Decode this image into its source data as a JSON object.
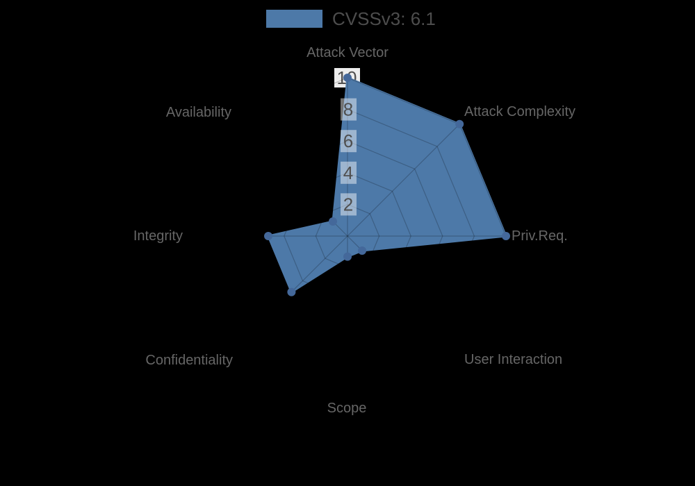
{
  "legend": {
    "label": "CVSSv3: 6.1"
  },
  "chart_data": {
    "type": "radar",
    "categories": [
      "Attack Vector",
      "Attack Complexity",
      "Priv.Req.",
      "User Interaction",
      "Scope",
      "Confidentiality",
      "Integrity",
      "Availability"
    ],
    "series": [
      {
        "name": "CVSSv3: 6.1",
        "values": [
          10,
          10,
          10,
          1.3,
          1.3,
          5,
          5,
          1.3
        ]
      }
    ],
    "ticks": [
      2,
      4,
      6,
      8,
      10
    ],
    "rmax": 10,
    "grid": true,
    "legend_position": "top-center",
    "center": {
      "x": 500,
      "y": 340
    },
    "radius_px_per_unit": 22.8
  },
  "colors": {
    "background": "#000000",
    "fill": "#4d79a8",
    "stroke": "#4d79a8",
    "dot": "#44689a",
    "grid": "rgba(0,0,0,0.22)",
    "axis_label": "#666666",
    "tick_text": "#4f4f4f",
    "tick_box_inner": "rgba(255,255,255,0.45)",
    "tick_box_outer": "#ededed",
    "legend_text": "#4d4d4d"
  }
}
